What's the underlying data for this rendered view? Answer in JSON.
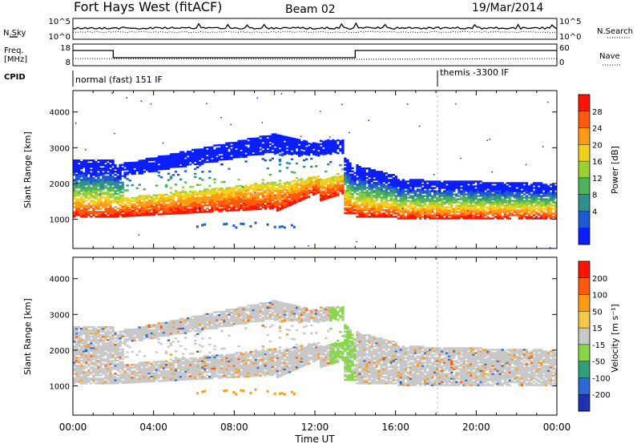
{
  "header": {
    "title": "Fort Hays West (fitACF)",
    "beam": "Beam 02",
    "date": "19/Mar/2014"
  },
  "params": {
    "nsky_label": "N.Sky",
    "nsearch_label": "N.Search",
    "freq_label_1": "Freq.",
    "freq_label_2": "[MHz]",
    "nave_label": "Nave",
    "cpid_label": "CPID",
    "left_ticks_top": [
      "10^5",
      "10^0"
    ],
    "right_ticks_top": [
      "10^5",
      "10^0"
    ],
    "left_ticks_freq": [
      "18",
      "8"
    ],
    "right_ticks_freq": [
      "60",
      "0"
    ],
    "cpid_left": "normal (fast) 151 IF",
    "cpid_right": "themis -3300 IF",
    "cpid_change_hour": 18
  },
  "chart_data": [
    {
      "type": "heatmap",
      "quantity": "Power",
      "ylabel": "Slant Range [km]",
      "yticks": [
        "1000",
        "2000",
        "3000",
        "4000"
      ],
      "ylim": [
        180,
        4600
      ],
      "colorbar_label": "Power [dB]",
      "colorbar_ticks": [
        "28",
        "24",
        "20",
        "16",
        "12",
        "8",
        "4"
      ],
      "colors": [
        "#0a1eff",
        "#1e5ad2",
        "#2f8f8c",
        "#4fb35a",
        "#9ad235",
        "#f0d21e",
        "#ff9a14",
        "#ff5a0a",
        "#ff1400"
      ]
    },
    {
      "type": "heatmap",
      "quantity": "Velocity",
      "ylabel": "Slant Range [km]",
      "yticks": [
        "1000",
        "2000",
        "3000",
        "4000"
      ],
      "ylim": [
        180,
        4600
      ],
      "colorbar_label": "Velocity [m s⁻¹]",
      "colorbar_ticks": [
        "200",
        "100",
        "50",
        "15",
        "-15",
        "-50",
        "-100",
        "-200"
      ],
      "colors": [
        "#1e32b4",
        "#2a6ad2",
        "#2fa07a",
        "#88d64a",
        "#c8c8c8",
        "#f5c84a",
        "#ff9a14",
        "#ff5a0a",
        "#ff1400"
      ]
    }
  ],
  "xaxis": {
    "label": "Time UT",
    "ticks": [
      "00:00",
      "04:00",
      "08:00",
      "12:00",
      "16:00",
      "20:00",
      "00:00"
    ],
    "xlim_hours": [
      0,
      24
    ]
  }
}
